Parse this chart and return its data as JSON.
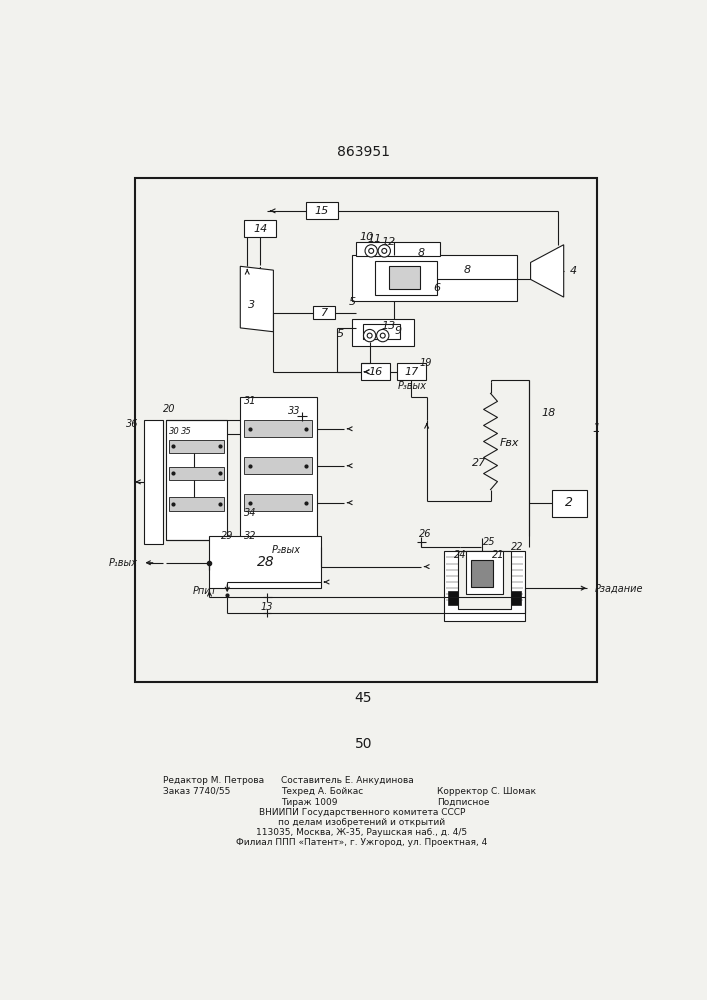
{
  "patent_number": "863951",
  "page_number_1": "45",
  "page_number_2": "50",
  "bg_color": "#f2f2ee",
  "line_color": "#1a1a1a"
}
